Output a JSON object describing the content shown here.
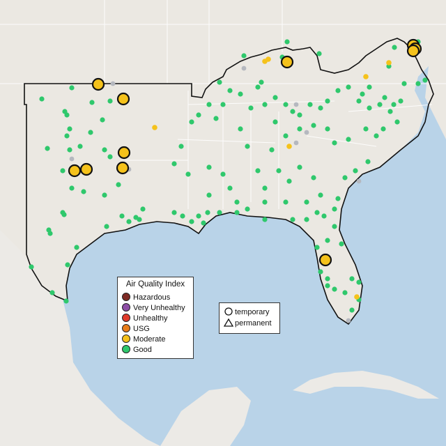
{
  "map": {
    "ocean_color": "#b9d3e8",
    "land_color": "#ebe8e2",
    "foreign_land_color": "#eceae6",
    "border_color": "#ffffff"
  },
  "legend_aqi": {
    "title": "Air Quality Index",
    "items": [
      {
        "label": "Hazardous",
        "color": "#7e2b25"
      },
      {
        "label": "Very Unhealthy",
        "color": "#8d4ea5"
      },
      {
        "label": "Unhealthy",
        "color": "#e03a2a"
      },
      {
        "label": "USG",
        "color": "#e87d1a"
      },
      {
        "label": "Moderate",
        "color": "#f5c21b"
      },
      {
        "label": "Good",
        "color": "#2fc86c"
      }
    ]
  },
  "legend_type": {
    "items": [
      {
        "label": "temporary",
        "shape": "circle"
      },
      {
        "label": "permanent",
        "shape": "triangle"
      }
    ]
  },
  "map_data": {
    "large_moderate_monitors": 11,
    "colors": {
      "good": "#2fc86c",
      "moderate": "#f5c21b",
      "inactive": "#b5b8bf"
    }
  }
}
